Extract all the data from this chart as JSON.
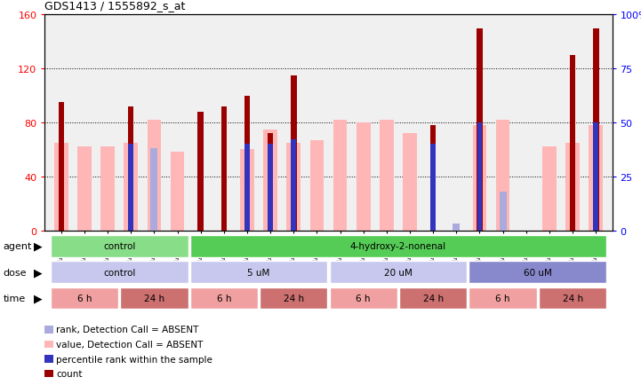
{
  "title": "GDS1413 / 1555892_s_at",
  "samples": [
    "GSM43955",
    "GSM45094",
    "GSM45108",
    "GSM45086",
    "GSM45100",
    "GSM45112",
    "GSM43956",
    "GSM45097",
    "GSM45109",
    "GSM45087",
    "GSM45101",
    "GSM45113",
    "GSM43957",
    "GSM45098",
    "GSM45110",
    "GSM45088",
    "GSM45104",
    "GSM45114",
    "GSM43958",
    "GSM45099",
    "GSM45111",
    "GSM45090",
    "GSM45106",
    "GSM45115"
  ],
  "count": [
    95,
    0,
    0,
    92,
    0,
    0,
    88,
    92,
    100,
    72,
    115,
    0,
    0,
    0,
    0,
    0,
    78,
    0,
    150,
    0,
    0,
    0,
    130,
    150
  ],
  "pink_bar": [
    65,
    62,
    62,
    65,
    82,
    58,
    0,
    0,
    60,
    75,
    65,
    67,
    82,
    80,
    82,
    72,
    0,
    0,
    78,
    82,
    0,
    62,
    65,
    78
  ],
  "blue_bar_pct": [
    0,
    0,
    0,
    40,
    0,
    0,
    0,
    0,
    40,
    40,
    42,
    0,
    0,
    0,
    0,
    0,
    40,
    0,
    50,
    0,
    0,
    0,
    0,
    50
  ],
  "light_blue_bar_pct": [
    0,
    0,
    0,
    0,
    38,
    0,
    0,
    0,
    0,
    0,
    0,
    0,
    0,
    0,
    0,
    0,
    0,
    3,
    0,
    18,
    0,
    0,
    0,
    0
  ],
  "ylim_left": [
    0,
    160
  ],
  "ylim_right": [
    0,
    100
  ],
  "yticks_left": [
    0,
    40,
    80,
    120,
    160
  ],
  "yticks_right": [
    0,
    25,
    50,
    75,
    100
  ],
  "dark_red": "#9b0000",
  "salmon": "#ffb6b6",
  "blue": "#3333bb",
  "light_blue": "#aaaadd",
  "plot_bg": "#f0f0f0",
  "agent_spans": [
    [
      0,
      6,
      "control",
      "#88dd88"
    ],
    [
      6,
      24,
      "4-hydroxy-2-nonenal",
      "#55cc55"
    ]
  ],
  "dose_spans": [
    [
      0,
      6,
      "control",
      "#c8c8ee"
    ],
    [
      6,
      12,
      "5 uM",
      "#c8c8ee"
    ],
    [
      12,
      18,
      "20 uM",
      "#c8c8ee"
    ],
    [
      18,
      24,
      "60 uM",
      "#8888cc"
    ]
  ],
  "time_spans": [
    [
      0,
      3,
      "6 h",
      "#f0a0a0"
    ],
    [
      3,
      6,
      "24 h",
      "#cc7070"
    ],
    [
      6,
      9,
      "6 h",
      "#f0a0a0"
    ],
    [
      9,
      12,
      "24 h",
      "#cc7070"
    ],
    [
      12,
      15,
      "6 h",
      "#f0a0a0"
    ],
    [
      15,
      18,
      "24 h",
      "#cc7070"
    ],
    [
      18,
      21,
      "6 h",
      "#f0a0a0"
    ],
    [
      21,
      24,
      "24 h",
      "#cc7070"
    ]
  ]
}
